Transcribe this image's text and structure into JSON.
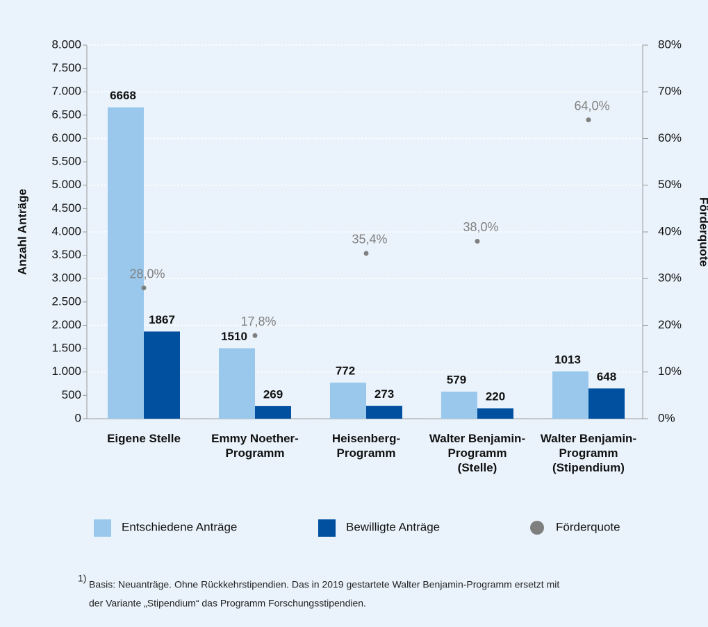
{
  "chart_data": {
    "type": "bar",
    "categories": [
      "Eigene Stelle",
      "Emmy Noether-\nProgramm",
      "Heisenberg-\nProgramm",
      "Walter Benjamin-\nProgramm\n(Stelle)",
      "Walter Benjamin-\nProgramm\n(Stipendium)"
    ],
    "series": [
      {
        "name": "Entschiedene Anträge",
        "color": "#99c8ec",
        "values": [
          6668,
          1510,
          772,
          579,
          1013
        ]
      },
      {
        "name": "Bewilligte Anträge",
        "color": "#00509f",
        "values": [
          1867,
          269,
          273,
          220,
          648
        ]
      },
      {
        "name": "Förderquote",
        "color": "#7f7f7f",
        "axis": "y2",
        "type": "scatter",
        "values": [
          28.0,
          17.8,
          35.4,
          38.0,
          64.0
        ],
        "value_labels": [
          "28,0%",
          "17,8%",
          "35,4%",
          "38,0%",
          "64,0%"
        ]
      }
    ],
    "ylabel": "Anzahl Anträge",
    "y2label": "Förderquote",
    "ylim": [
      0,
      8000
    ],
    "yticks": [
      0,
      500,
      {
        "value": 1000,
        "label": "1.000"
      },
      {
        "value": 1500,
        "label": "1.500"
      },
      {
        "value": 2000,
        "label": "2.000"
      },
      {
        "value": 2500,
        "label": "2.500"
      },
      {
        "value": 3000,
        "label": "3.000"
      },
      {
        "value": 3500,
        "label": "3.500"
      },
      {
        "value": 4000,
        "label": "4.000"
      },
      {
        "value": 4500,
        "label": "4.500"
      },
      {
        "value": 5000,
        "label": "5.000"
      },
      {
        "value": 5500,
        "label": "5.500"
      },
      {
        "value": 6000,
        "label": "6.000"
      },
      {
        "value": 6500,
        "label": "6.500"
      },
      {
        "value": 7000,
        "label": "7.000"
      },
      {
        "value": 7500,
        "label": "7.500"
      },
      {
        "value": 8000,
        "label": "8.000"
      }
    ],
    "y2lim": [
      0,
      80
    ],
    "y2ticks": [
      {
        "value": 0,
        "label": "0%"
      },
      {
        "value": 10,
        "label": "10%"
      },
      {
        "value": 20,
        "label": "20%"
      },
      {
        "value": 30,
        "label": "30%"
      },
      {
        "value": 40,
        "label": "40%"
      },
      {
        "value": 50,
        "label": "50%"
      },
      {
        "value": 60,
        "label": "60%"
      },
      {
        "value": 70,
        "label": "70%"
      },
      {
        "value": 80,
        "label": "80%"
      }
    ],
    "grid": true,
    "footnote": {
      "marker": "1)",
      "lines": [
        "Basis: Neuanträge. Ohne Rückkehrstipendien. Das in 2019 gestartete Walter Benjamin-Programm ersetzt mit",
        "der Variante „Stipendium“ das Programm Forschungsstipendien."
      ]
    }
  }
}
